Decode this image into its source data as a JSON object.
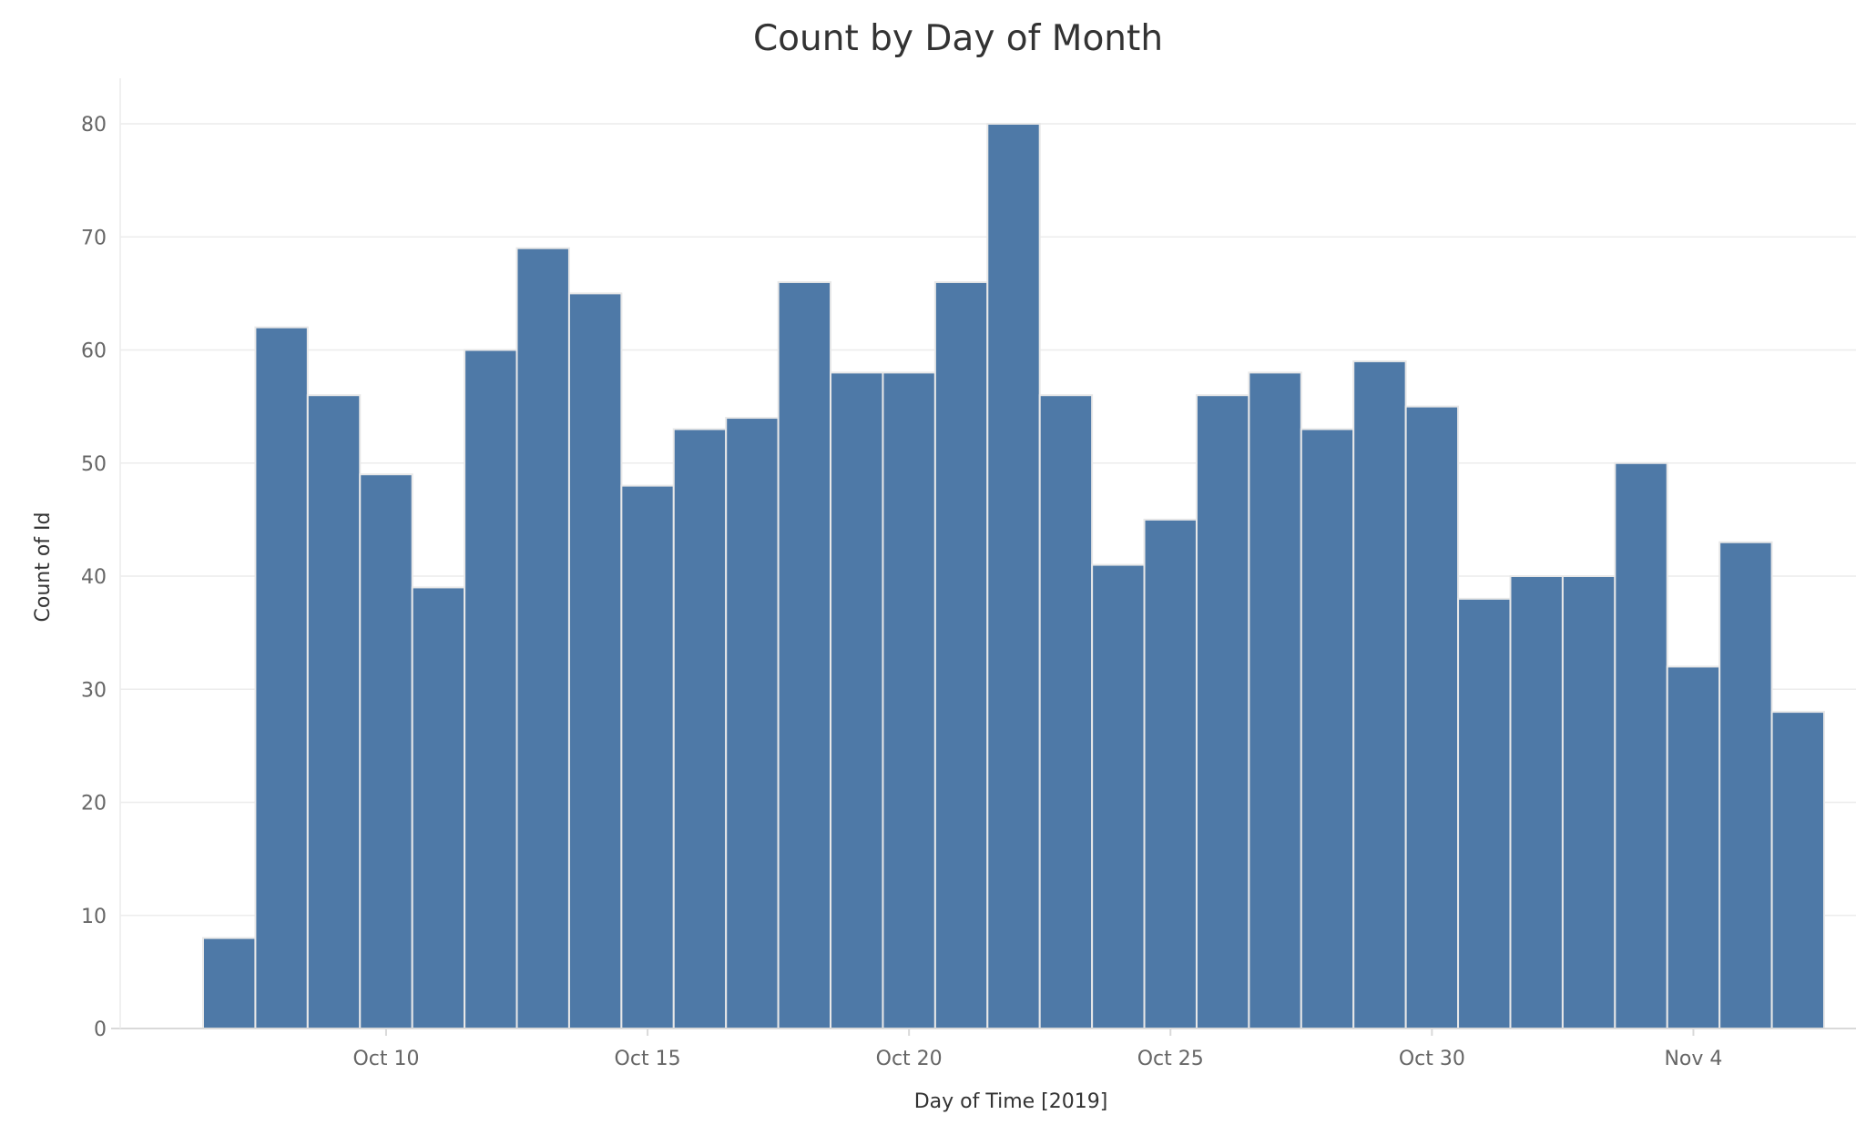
{
  "chart_data": {
    "type": "bar",
    "title": "Count by Day of Month",
    "xlabel": "Day of Time [2019]",
    "ylabel": "Count of Id",
    "categories": [
      "Oct 7",
      "Oct 8",
      "Oct 9",
      "Oct 10",
      "Oct 11",
      "Oct 12",
      "Oct 13",
      "Oct 14",
      "Oct 15",
      "Oct 16",
      "Oct 17",
      "Oct 18",
      "Oct 19",
      "Oct 20",
      "Oct 21",
      "Oct 22",
      "Oct 23",
      "Oct 24",
      "Oct 25",
      "Oct 26",
      "Oct 27",
      "Oct 28",
      "Oct 29",
      "Oct 30",
      "Oct 31",
      "Nov 1",
      "Nov 2",
      "Nov 3",
      "Nov 4",
      "Nov 5",
      "Nov 6"
    ],
    "values": [
      8,
      62,
      56,
      49,
      39,
      60,
      69,
      65,
      48,
      53,
      54,
      66,
      58,
      58,
      66,
      80,
      56,
      41,
      45,
      56,
      58,
      53,
      59,
      55,
      38,
      40,
      40,
      50,
      32,
      43,
      28
    ],
    "x_ticks": [
      {
        "label": "Oct 10",
        "category": "Oct 10"
      },
      {
        "label": "Oct 15",
        "category": "Oct 15"
      },
      {
        "label": "Oct 20",
        "category": "Oct 20"
      },
      {
        "label": "Oct 25",
        "category": "Oct 25"
      },
      {
        "label": "Oct 30",
        "category": "Oct 30"
      },
      {
        "label": "Nov 4",
        "category": "Nov 4"
      }
    ],
    "y_ticks": [
      0,
      10,
      20,
      30,
      40,
      50,
      60,
      70,
      80
    ],
    "ylim": [
      0,
      80
    ],
    "grid": "horizontal",
    "legend": "none",
    "colors": {
      "bar": "#4e79a7",
      "bar_edge": "#e8e8e8",
      "grid": "#ececec",
      "axis": "#d9d9d9",
      "tick_text": "#666666",
      "title_text": "#333333"
    }
  }
}
